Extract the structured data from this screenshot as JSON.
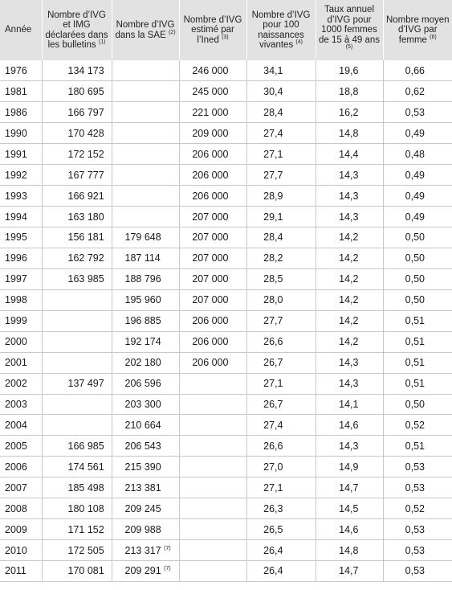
{
  "headers": [
    {
      "key": "annee",
      "text": "Année",
      "note": ""
    },
    {
      "key": "bulletins",
      "text": "Nombre d’IVG et IMG déclarées dans les bulletins",
      "note": "(1)"
    },
    {
      "key": "sae",
      "text": "Nombre d’IVG dans la SAE",
      "note": "(2)"
    },
    {
      "key": "ined",
      "text": "Nombre d’IVG estimé par l’Ined",
      "note": "(3)"
    },
    {
      "key": "pour100",
      "text": "Nombre d’IVG pour 100 naissances vivantes",
      "note": "(4)"
    },
    {
      "key": "taux",
      "text": "Taux annuel d’IVG pour 1000 femmes de 15 à 49 ans",
      "note": "(5)"
    },
    {
      "key": "moyen",
      "text": "Nombre moyen d’IVG par femme",
      "note": "(6)"
    }
  ],
  "rows": [
    {
      "annee": "1976",
      "bulletins": "134 173",
      "sae": "",
      "sae_note": "",
      "ined": "246 000",
      "pour100": "34,1",
      "taux": "19,6",
      "moyen": "0,66"
    },
    {
      "annee": "1981",
      "bulletins": "180 695",
      "sae": "",
      "sae_note": "",
      "ined": "245 000",
      "pour100": "30,4",
      "taux": "18,8",
      "moyen": "0,62"
    },
    {
      "annee": "1986",
      "bulletins": "166 797",
      "sae": "",
      "sae_note": "",
      "ined": "221 000",
      "pour100": "28,4",
      "taux": "16,2",
      "moyen": "0,53"
    },
    {
      "annee": "1990",
      "bulletins": "170 428",
      "sae": "",
      "sae_note": "",
      "ined": "209 000",
      "pour100": "27,4",
      "taux": "14,8",
      "moyen": "0,49"
    },
    {
      "annee": "1991",
      "bulletins": "172 152",
      "sae": "",
      "sae_note": "",
      "ined": "206 000",
      "pour100": "27,1",
      "taux": "14,4",
      "moyen": "0,48"
    },
    {
      "annee": "1992",
      "bulletins": "167 777",
      "sae": "",
      "sae_note": "",
      "ined": "206 000",
      "pour100": "27,7",
      "taux": "14,3",
      "moyen": "0,49"
    },
    {
      "annee": "1993",
      "bulletins": "166 921",
      "sae": "",
      "sae_note": "",
      "ined": "206 000",
      "pour100": "28,9",
      "taux": "14,3",
      "moyen": "0,49"
    },
    {
      "annee": "1994",
      "bulletins": "163 180",
      "sae": "",
      "sae_note": "",
      "ined": "207 000",
      "pour100": "29,1",
      "taux": "14,3",
      "moyen": "0,49"
    },
    {
      "annee": "1995",
      "bulletins": "156 181",
      "sae": "179 648",
      "sae_note": "",
      "ined": "207 000",
      "pour100": "28,4",
      "taux": "14,2",
      "moyen": "0,50"
    },
    {
      "annee": "1996",
      "bulletins": "162 792",
      "sae": "187 114",
      "sae_note": "",
      "ined": "207 000",
      "pour100": "28,2",
      "taux": "14,2",
      "moyen": "0,50"
    },
    {
      "annee": "1997",
      "bulletins": "163 985",
      "sae": "188 796",
      "sae_note": "",
      "ined": "207 000",
      "pour100": "28,5",
      "taux": "14,2",
      "moyen": "0,50"
    },
    {
      "annee": "1998",
      "bulletins": "",
      "sae": "195 960",
      "sae_note": "",
      "ined": "207 000",
      "pour100": "28,0",
      "taux": "14,2",
      "moyen": "0,50"
    },
    {
      "annee": "1999",
      "bulletins": "",
      "sae": "196 885",
      "sae_note": "",
      "ined": "206 000",
      "pour100": "27,7",
      "taux": "14,2",
      "moyen": "0,51"
    },
    {
      "annee": "2000",
      "bulletins": "",
      "sae": "192 174",
      "sae_note": "",
      "ined": "206 000",
      "pour100": "26,6",
      "taux": "14,2",
      "moyen": "0,51"
    },
    {
      "annee": "2001",
      "bulletins": "",
      "sae": "202 180",
      "sae_note": "",
      "ined": "206 000",
      "pour100": "26,7",
      "taux": "14,3",
      "moyen": "0,51"
    },
    {
      "annee": "2002",
      "bulletins": "137 497",
      "sae": "206 596",
      "sae_note": "",
      "ined": "",
      "pour100": "27,1",
      "taux": "14,3",
      "moyen": "0,51"
    },
    {
      "annee": "2003",
      "bulletins": "",
      "sae": "203 300",
      "sae_note": "",
      "ined": "",
      "pour100": "26,7",
      "taux": "14,1",
      "moyen": "0,50"
    },
    {
      "annee": "2004",
      "bulletins": "",
      "sae": "210 664",
      "sae_note": "",
      "ined": "",
      "pour100": "27,4",
      "taux": "14,6",
      "moyen": "0,52"
    },
    {
      "annee": "2005",
      "bulletins": "166 985",
      "sae": "206 543",
      "sae_note": "",
      "ined": "",
      "pour100": "26,6",
      "taux": "14,3",
      "moyen": "0,51"
    },
    {
      "annee": "2006",
      "bulletins": "174 561",
      "sae": "215 390",
      "sae_note": "",
      "ined": "",
      "pour100": "27,0",
      "taux": "14,9",
      "moyen": "0,53"
    },
    {
      "annee": "2007",
      "bulletins": "185 498",
      "sae": "213 381",
      "sae_note": "",
      "ined": "",
      "pour100": "27,1",
      "taux": "14,7",
      "moyen": "0,53"
    },
    {
      "annee": "2008",
      "bulletins": "180 108",
      "sae": "209 245",
      "sae_note": "",
      "ined": "",
      "pour100": "26,3",
      "taux": "14,5",
      "moyen": "0,52"
    },
    {
      "annee": "2009",
      "bulletins": "171 152",
      "sae": "209 988",
      "sae_note": "",
      "ined": "",
      "pour100": "26,5",
      "taux": "14,6",
      "moyen": "0,53"
    },
    {
      "annee": "2010",
      "bulletins": "172 505",
      "sae": "213 317",
      "sae_note": "(7)",
      "ined": "",
      "pour100": "26,4",
      "taux": "14,8",
      "moyen": "0,53"
    },
    {
      "annee": "2011",
      "bulletins": "170 081",
      "sae": "209 291",
      "sae_note": "(7)",
      "ined": "",
      "pour100": "26,4",
      "taux": "14,7",
      "moyen": "0,53"
    }
  ]
}
